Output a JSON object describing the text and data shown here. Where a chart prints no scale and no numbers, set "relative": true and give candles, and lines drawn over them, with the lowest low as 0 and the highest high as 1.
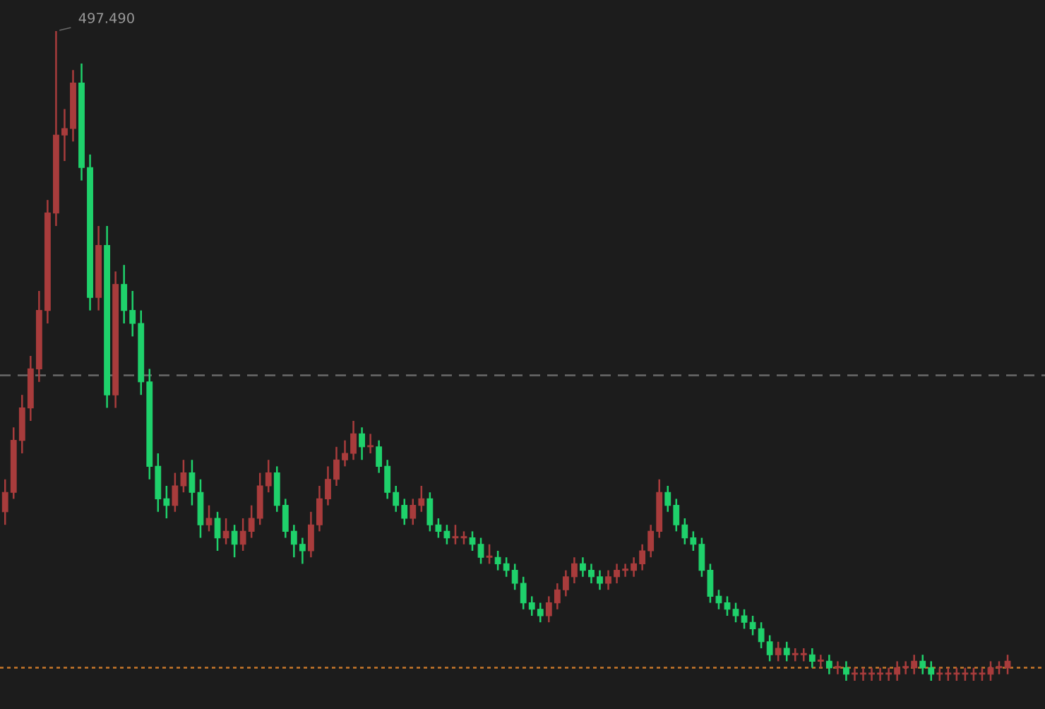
{
  "chart_data": {
    "type": "candlestick",
    "relative": true,
    "categories": [
      null,
      null,
      null,
      null,
      null,
      null,
      null,
      null,
      null,
      null,
      null,
      null,
      null,
      null,
      null,
      null,
      null,
      null,
      null,
      null,
      null,
      null,
      null,
      null,
      null,
      null,
      null,
      null,
      null,
      null,
      null,
      null,
      null,
      null,
      null,
      null,
      null,
      null,
      null,
      null,
      null,
      null,
      null,
      null,
      null,
      null,
      null,
      null,
      null,
      null,
      null,
      null,
      null,
      null,
      null,
      null,
      null,
      null,
      null,
      null,
      null,
      null,
      null,
      null,
      null,
      null,
      null,
      null,
      null,
      null,
      null,
      null,
      null,
      null,
      null,
      null,
      null,
      null,
      null,
      null,
      null,
      null,
      null,
      null,
      null,
      null,
      null,
      null,
      null,
      null,
      null,
      null,
      null,
      null,
      null,
      null,
      null,
      null,
      null,
      null,
      null,
      null,
      null,
      null,
      null,
      null,
      null,
      null,
      null,
      null,
      null,
      null,
      null,
      null,
      null,
      null,
      null,
      null,
      null
    ],
    "ohlc": [
      [
        0.26,
        0.31,
        0.24,
        0.29
      ],
      [
        0.29,
        0.39,
        0.28,
        0.37
      ],
      [
        0.37,
        0.44,
        0.35,
        0.42
      ],
      [
        0.42,
        0.5,
        0.4,
        0.48
      ],
      [
        0.48,
        0.6,
        0.46,
        0.57
      ],
      [
        0.57,
        0.74,
        0.55,
        0.72
      ],
      [
        0.72,
        1.0,
        0.7,
        0.84
      ],
      [
        0.84,
        0.88,
        0.8,
        0.85
      ],
      [
        0.85,
        0.94,
        0.83,
        0.92
      ],
      [
        0.92,
        0.95,
        0.77,
        0.79
      ],
      [
        0.79,
        0.81,
        0.57,
        0.59
      ],
      [
        0.59,
        0.7,
        0.57,
        0.67
      ],
      [
        0.67,
        0.7,
        0.42,
        0.44
      ],
      [
        0.44,
        0.63,
        0.42,
        0.61
      ],
      [
        0.61,
        0.64,
        0.55,
        0.57
      ],
      [
        0.57,
        0.6,
        0.53,
        0.55
      ],
      [
        0.55,
        0.57,
        0.44,
        0.46
      ],
      [
        0.46,
        0.48,
        0.31,
        0.33
      ],
      [
        0.33,
        0.35,
        0.26,
        0.28
      ],
      [
        0.28,
        0.3,
        0.25,
        0.27
      ],
      [
        0.27,
        0.32,
        0.26,
        0.3
      ],
      [
        0.3,
        0.34,
        0.29,
        0.32
      ],
      [
        0.32,
        0.34,
        0.27,
        0.29
      ],
      [
        0.29,
        0.31,
        0.22,
        0.24
      ],
      [
        0.24,
        0.27,
        0.23,
        0.25
      ],
      [
        0.25,
        0.26,
        0.2,
        0.22
      ],
      [
        0.22,
        0.25,
        0.21,
        0.23
      ],
      [
        0.23,
        0.24,
        0.19,
        0.21
      ],
      [
        0.21,
        0.25,
        0.2,
        0.23
      ],
      [
        0.23,
        0.27,
        0.22,
        0.25
      ],
      [
        0.25,
        0.32,
        0.24,
        0.3
      ],
      [
        0.3,
        0.34,
        0.29,
        0.32
      ],
      [
        0.32,
        0.33,
        0.26,
        0.27
      ],
      [
        0.27,
        0.28,
        0.22,
        0.23
      ],
      [
        0.23,
        0.24,
        0.19,
        0.21
      ],
      [
        0.21,
        0.22,
        0.18,
        0.2
      ],
      [
        0.2,
        0.26,
        0.19,
        0.24
      ],
      [
        0.24,
        0.3,
        0.23,
        0.28
      ],
      [
        0.28,
        0.33,
        0.27,
        0.31
      ],
      [
        0.31,
        0.36,
        0.3,
        0.34
      ],
      [
        0.34,
        0.37,
        0.33,
        0.35
      ],
      [
        0.35,
        0.4,
        0.34,
        0.38
      ],
      [
        0.38,
        0.39,
        0.34,
        0.36
      ],
      [
        0.36,
        0.38,
        0.35,
        0.36
      ],
      [
        0.36,
        0.37,
        0.32,
        0.33
      ],
      [
        0.33,
        0.34,
        0.28,
        0.29
      ],
      [
        0.29,
        0.3,
        0.26,
        0.27
      ],
      [
        0.27,
        0.28,
        0.24,
        0.25
      ],
      [
        0.25,
        0.28,
        0.24,
        0.27
      ],
      [
        0.27,
        0.3,
        0.26,
        0.28
      ],
      [
        0.28,
        0.29,
        0.23,
        0.24
      ],
      [
        0.24,
        0.25,
        0.22,
        0.23
      ],
      [
        0.23,
        0.24,
        0.21,
        0.22
      ],
      [
        0.22,
        0.24,
        0.21,
        0.22
      ],
      [
        0.22,
        0.23,
        0.21,
        0.22
      ],
      [
        0.22,
        0.23,
        0.2,
        0.21
      ],
      [
        0.21,
        0.22,
        0.18,
        0.19
      ],
      [
        0.19,
        0.21,
        0.18,
        0.19
      ],
      [
        0.19,
        0.2,
        0.17,
        0.18
      ],
      [
        0.18,
        0.19,
        0.16,
        0.17
      ],
      [
        0.17,
        0.18,
        0.14,
        0.15
      ],
      [
        0.15,
        0.16,
        0.11,
        0.12
      ],
      [
        0.12,
        0.13,
        0.1,
        0.11
      ],
      [
        0.11,
        0.12,
        0.09,
        0.1
      ],
      [
        0.1,
        0.13,
        0.09,
        0.12
      ],
      [
        0.12,
        0.15,
        0.11,
        0.14
      ],
      [
        0.14,
        0.17,
        0.13,
        0.16
      ],
      [
        0.16,
        0.19,
        0.15,
        0.18
      ],
      [
        0.18,
        0.19,
        0.16,
        0.17
      ],
      [
        0.17,
        0.18,
        0.15,
        0.16
      ],
      [
        0.16,
        0.17,
        0.14,
        0.15
      ],
      [
        0.15,
        0.17,
        0.14,
        0.16
      ],
      [
        0.16,
        0.18,
        0.15,
        0.17
      ],
      [
        0.17,
        0.18,
        0.16,
        0.17
      ],
      [
        0.17,
        0.19,
        0.16,
        0.18
      ],
      [
        0.18,
        0.21,
        0.17,
        0.2
      ],
      [
        0.2,
        0.24,
        0.19,
        0.23
      ],
      [
        0.23,
        0.31,
        0.22,
        0.29
      ],
      [
        0.29,
        0.3,
        0.26,
        0.27
      ],
      [
        0.27,
        0.28,
        0.23,
        0.24
      ],
      [
        0.24,
        0.25,
        0.21,
        0.22
      ],
      [
        0.22,
        0.23,
        0.2,
        0.21
      ],
      [
        0.21,
        0.22,
        0.16,
        0.17
      ],
      [
        0.17,
        0.18,
        0.12,
        0.13
      ],
      [
        0.13,
        0.14,
        0.11,
        0.12
      ],
      [
        0.12,
        0.13,
        0.1,
        0.11
      ],
      [
        0.11,
        0.12,
        0.09,
        0.1
      ],
      [
        0.1,
        0.11,
        0.08,
        0.09
      ],
      [
        0.09,
        0.1,
        0.07,
        0.08
      ],
      [
        0.08,
        0.09,
        0.05,
        0.06
      ],
      [
        0.06,
        0.07,
        0.03,
        0.04
      ],
      [
        0.04,
        0.06,
        0.03,
        0.05
      ],
      [
        0.05,
        0.06,
        0.03,
        0.04
      ],
      [
        0.04,
        0.05,
        0.03,
        0.04
      ],
      [
        0.04,
        0.05,
        0.03,
        0.04
      ],
      [
        0.04,
        0.05,
        0.02,
        0.03
      ],
      [
        0.03,
        0.04,
        0.02,
        0.03
      ],
      [
        0.03,
        0.04,
        0.01,
        0.02
      ],
      [
        0.02,
        0.03,
        0.01,
        0.02
      ],
      [
        0.02,
        0.03,
        0.0,
        0.01
      ],
      [
        0.01,
        0.02,
        0.0,
        0.01
      ],
      [
        0.01,
        0.02,
        0.0,
        0.01
      ],
      [
        0.01,
        0.02,
        0.0,
        0.01
      ],
      [
        0.01,
        0.02,
        0.0,
        0.01
      ],
      [
        0.01,
        0.02,
        0.0,
        0.01
      ],
      [
        0.01,
        0.03,
        0.0,
        0.02
      ],
      [
        0.02,
        0.03,
        0.01,
        0.02
      ],
      [
        0.02,
        0.04,
        0.01,
        0.03
      ],
      [
        0.03,
        0.04,
        0.01,
        0.02
      ],
      [
        0.02,
        0.03,
        0.0,
        0.01
      ],
      [
        0.01,
        0.02,
        0.0,
        0.01
      ],
      [
        0.01,
        0.02,
        0.0,
        0.01
      ],
      [
        0.01,
        0.02,
        0.0,
        0.01
      ],
      [
        0.01,
        0.02,
        0.0,
        0.01
      ],
      [
        0.01,
        0.02,
        0.0,
        0.01
      ],
      [
        0.01,
        0.02,
        0.0,
        0.01
      ],
      [
        0.01,
        0.03,
        0.0,
        0.02
      ],
      [
        0.02,
        0.03,
        0.01,
        0.02
      ],
      [
        0.02,
        0.04,
        0.01,
        0.03
      ]
    ],
    "colors": [
      "#a83c3c",
      "#a83c3c",
      "#a83c3c",
      "#a83c3c",
      "#a83c3c",
      "#a83c3c",
      "#a83c3c",
      "#a83c3c",
      "#a83c3c",
      "#1fd16b",
      "#1fd16b",
      "#a83c3c",
      "#1fd16b",
      "#a83c3c",
      "#1fd16b",
      "#1fd16b",
      "#1fd16b",
      "#1fd16b",
      "#1fd16b",
      "#1fd16b",
      "#a83c3c",
      "#a83c3c",
      "#1fd16b",
      "#1fd16b",
      "#a83c3c",
      "#1fd16b",
      "#a83c3c",
      "#1fd16b",
      "#a83c3c",
      "#a83c3c",
      "#a83c3c",
      "#a83c3c",
      "#1fd16b",
      "#1fd16b",
      "#1fd16b",
      "#1fd16b",
      "#a83c3c",
      "#a83c3c",
      "#a83c3c",
      "#a83c3c",
      "#a83c3c",
      "#a83c3c",
      "#1fd16b",
      "#a83c3c",
      "#1fd16b",
      "#1fd16b",
      "#1fd16b",
      "#1fd16b",
      "#a83c3c",
      "#a83c3c",
      "#1fd16b",
      "#1fd16b",
      "#1fd16b",
      "#a83c3c",
      "#a83c3c",
      "#1fd16b",
      "#1fd16b",
      "#a83c3c",
      "#1fd16b",
      "#1fd16b",
      "#1fd16b",
      "#1fd16b",
      "#1fd16b",
      "#1fd16b",
      "#a83c3c",
      "#a83c3c",
      "#a83c3c",
      "#a83c3c",
      "#1fd16b",
      "#1fd16b",
      "#1fd16b",
      "#a83c3c",
      "#a83c3c",
      "#a83c3c",
      "#a83c3c",
      "#a83c3c",
      "#a83c3c",
      "#a83c3c",
      "#1fd16b",
      "#1fd16b",
      "#1fd16b",
      "#1fd16b",
      "#1fd16b",
      "#1fd16b",
      "#1fd16b",
      "#1fd16b",
      "#1fd16b",
      "#1fd16b",
      "#1fd16b",
      "#1fd16b",
      "#1fd16b",
      "#a83c3c",
      "#1fd16b",
      "#a83c3c",
      "#a83c3c",
      "#1fd16b",
      "#a83c3c",
      "#1fd16b",
      "#a83c3c",
      "#1fd16b",
      "#a83c3c",
      "#a83c3c",
      "#a83c3c",
      "#a83c3c",
      "#a83c3c",
      "#a83c3c",
      "#a83c3c",
      "#a83c3c",
      "#1fd16b",
      "#1fd16b",
      "#a83c3c",
      "#a83c3c",
      "#a83c3c",
      "#a83c3c",
      "#a83c3c",
      "#a83c3c",
      "#a83c3c",
      "#a83c3c",
      "#a83c3c"
    ],
    "annotations": [
      "497.490"
    ],
    "ref_lines": [
      {
        "axis": "y",
        "value": 0.47,
        "color": "#6a6a6a",
        "line_style": "dashed"
      },
      {
        "axis": "y",
        "value": 0.02,
        "color": "#c8782a",
        "line_style": "dotted"
      }
    ]
  }
}
